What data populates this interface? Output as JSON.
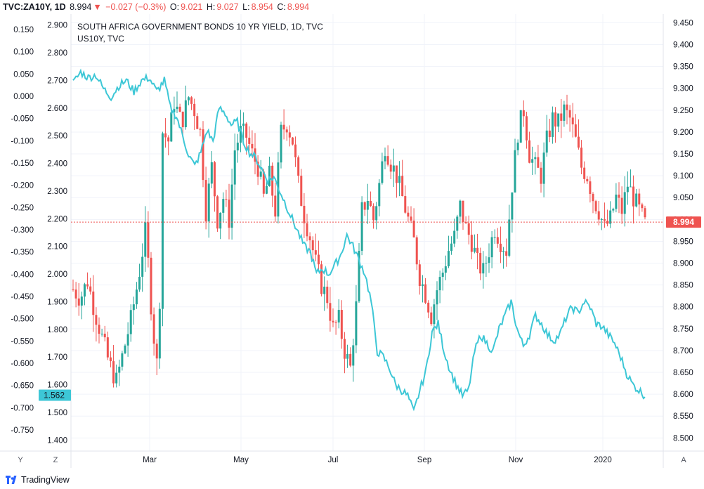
{
  "header": {
    "symbol": "TVC:ZA10Y, 1D",
    "last": "8.994",
    "change": "−0.027 (−0.3%)",
    "open_label": "O:",
    "open": "9.021",
    "high_label": "H:",
    "high": "9.027",
    "low_label": "L:",
    "low": "8.954",
    "close_label": "C:",
    "close": "8.994"
  },
  "legend": {
    "main": "SOUTH AFRICA GOVERNMENT BONDS 10 YR YIELD, 1D, TVC",
    "overlay": "US10Y, TVC"
  },
  "controls": {
    "y_button": "Y",
    "z_button": "Z",
    "a_button": "A"
  },
  "brand": "TradingView",
  "colors": {
    "up": "#26a69a",
    "down": "#ef5350",
    "overlay": "#3dc7d6",
    "grid": "#f0f3fa",
    "price_line": "#ef5350"
  },
  "chart_data": {
    "type": "candlestick-with-overlay",
    "x_tick_labels": [
      "Mar",
      "May",
      "Jul",
      "Sep",
      "Nov",
      "2020"
    ],
    "right_axis": {
      "ticks": [
        "9.450",
        "9.400",
        "9.350",
        "9.300",
        "9.250",
        "9.200",
        "9.150",
        "9.100",
        "9.050",
        "9.000",
        "8.950",
        "8.900",
        "8.850",
        "8.800",
        "8.750",
        "8.700",
        "8.650",
        "8.600",
        "8.550",
        "8.500"
      ],
      "ylim": [
        8.47,
        9.47
      ]
    },
    "left_axis_1": {
      "ticks": [
        "2.900",
        "2.800",
        "2.700",
        "2.600",
        "2.500",
        "2.400",
        "2.300",
        "2.200",
        "2.100",
        "2.000",
        "1.900",
        "1.800",
        "1.700",
        "1.600",
        "1.500",
        "1.400"
      ],
      "ylim": [
        1.36,
        2.94
      ]
    },
    "left_axis_2": {
      "ticks": [
        "0.150",
        "0.100",
        "0.050",
        "0.000",
        "-0.050",
        "-0.100",
        "-0.150",
        "-0.200",
        "-0.250",
        "-0.300",
        "-0.350",
        "-0.400",
        "-0.450",
        "-0.500",
        "-0.550",
        "-0.600",
        "-0.650",
        "-0.700",
        "-0.750"
      ]
    },
    "last_price_label": "8.994",
    "overlay_last_label": "1.562",
    "za10y_close_path": [
      [
        0,
        8.84
      ],
      [
        5,
        8.82
      ],
      [
        10,
        8.86
      ],
      [
        15,
        8.79
      ],
      [
        20,
        8.73
      ],
      [
        25,
        8.67
      ],
      [
        30,
        8.63
      ],
      [
        35,
        8.7
      ],
      [
        40,
        8.77
      ],
      [
        45,
        8.86
      ],
      [
        50,
        8.97
      ],
      [
        52,
        8.9
      ],
      [
        55,
        8.76
      ],
      [
        58,
        8.67
      ],
      [
        60,
        8.82
      ],
      [
        62,
        9.2
      ],
      [
        66,
        9.18
      ],
      [
        70,
        9.27
      ],
      [
        75,
        9.22
      ],
      [
        80,
        9.28
      ],
      [
        84,
        9.25
      ],
      [
        88,
        9.2
      ],
      [
        92,
        9.02
      ],
      [
        96,
        9.12
      ],
      [
        100,
        9.0
      ],
      [
        104,
        9.05
      ],
      [
        108,
        9.0
      ],
      [
        112,
        9.16
      ],
      [
        116,
        9.2
      ],
      [
        120,
        9.19
      ],
      [
        124,
        9.15
      ],
      [
        128,
        9.12
      ],
      [
        132,
        9.05
      ],
      [
        136,
        9.1
      ],
      [
        140,
        9.02
      ],
      [
        144,
        9.2
      ],
      [
        148,
        9.22
      ],
      [
        152,
        9.18
      ],
      [
        156,
        9.08
      ],
      [
        160,
        9.01
      ],
      [
        164,
        8.96
      ],
      [
        168,
        8.9
      ],
      [
        172,
        8.85
      ],
      [
        176,
        8.82
      ],
      [
        180,
        8.75
      ],
      [
        184,
        8.77
      ],
      [
        188,
        8.7
      ],
      [
        192,
        8.66
      ],
      [
        196,
        8.8
      ],
      [
        200,
        9.02
      ],
      [
        204,
        9.05
      ],
      [
        208,
        9.0
      ],
      [
        212,
        9.08
      ],
      [
        216,
        9.17
      ],
      [
        220,
        9.13
      ],
      [
        224,
        9.1
      ],
      [
        228,
        9.05
      ],
      [
        232,
        9.0
      ],
      [
        236,
        8.95
      ],
      [
        240,
        8.87
      ],
      [
        244,
        8.83
      ],
      [
        248,
        8.78
      ],
      [
        252,
        8.84
      ],
      [
        256,
        8.88
      ],
      [
        260,
        8.93
      ],
      [
        264,
        8.96
      ],
      [
        268,
        9.03
      ],
      [
        272,
        8.98
      ],
      [
        276,
        8.95
      ],
      [
        280,
        8.9
      ],
      [
        284,
        8.88
      ],
      [
        288,
        8.93
      ],
      [
        292,
        8.98
      ],
      [
        296,
        8.95
      ],
      [
        300,
        8.93
      ],
      [
        304,
        9.08
      ],
      [
        308,
        9.2
      ],
      [
        312,
        9.25
      ],
      [
        316,
        9.15
      ],
      [
        320,
        9.12
      ],
      [
        324,
        9.1
      ],
      [
        328,
        9.18
      ],
      [
        332,
        9.23
      ],
      [
        336,
        9.22
      ],
      [
        340,
        9.25
      ],
      [
        344,
        9.23
      ],
      [
        348,
        9.18
      ],
      [
        352,
        9.12
      ],
      [
        356,
        9.1
      ],
      [
        360,
        9.05
      ],
      [
        364,
        9.02
      ],
      [
        368,
        8.98
      ],
      [
        372,
        9.0
      ],
      [
        376,
        9.05
      ],
      [
        380,
        9.02
      ],
      [
        384,
        9.08
      ],
      [
        388,
        9.05
      ],
      [
        392,
        9.02
      ],
      [
        396,
        8.99
      ]
    ],
    "us10y_path": [
      [
        0,
        2.69
      ],
      [
        5,
        2.73
      ],
      [
        10,
        2.71
      ],
      [
        15,
        2.72
      ],
      [
        20,
        2.67
      ],
      [
        25,
        2.64
      ],
      [
        30,
        2.68
      ],
      [
        35,
        2.7
      ],
      [
        40,
        2.66
      ],
      [
        45,
        2.7
      ],
      [
        50,
        2.71
      ],
      [
        55,
        2.66
      ],
      [
        60,
        2.7
      ],
      [
        64,
        2.6
      ],
      [
        68,
        2.57
      ],
      [
        72,
        2.5
      ],
      [
        76,
        2.43
      ],
      [
        80,
        2.39
      ],
      [
        84,
        2.44
      ],
      [
        88,
        2.52
      ],
      [
        92,
        2.48
      ],
      [
        96,
        2.6
      ],
      [
        100,
        2.58
      ],
      [
        104,
        2.54
      ],
      [
        108,
        2.55
      ],
      [
        112,
        2.48
      ],
      [
        116,
        2.44
      ],
      [
        120,
        2.42
      ],
      [
        124,
        2.38
      ],
      [
        128,
        2.34
      ],
      [
        132,
        2.35
      ],
      [
        136,
        2.3
      ],
      [
        140,
        2.25
      ],
      [
        144,
        2.2
      ],
      [
        148,
        2.15
      ],
      [
        152,
        2.1
      ],
      [
        156,
        2.08
      ],
      [
        160,
        2.0
      ],
      [
        164,
        2.02
      ],
      [
        168,
        2.0
      ],
      [
        172,
        2.03
      ],
      [
        176,
        2.07
      ],
      [
        180,
        2.14
      ],
      [
        184,
        2.1
      ],
      [
        188,
        2.05
      ],
      [
        192,
        2.0
      ],
      [
        196,
        1.9
      ],
      [
        200,
        1.72
      ],
      [
        204,
        1.7
      ],
      [
        208,
        1.66
      ],
      [
        212,
        1.6
      ],
      [
        216,
        1.58
      ],
      [
        220,
        1.56
      ],
      [
        224,
        1.5
      ],
      [
        228,
        1.58
      ],
      [
        232,
        1.65
      ],
      [
        236,
        1.79
      ],
      [
        240,
        1.82
      ],
      [
        244,
        1.72
      ],
      [
        248,
        1.65
      ],
      [
        252,
        1.6
      ],
      [
        256,
        1.56
      ],
      [
        260,
        1.58
      ],
      [
        264,
        1.72
      ],
      [
        268,
        1.78
      ],
      [
        272,
        1.75
      ],
      [
        276,
        1.72
      ],
      [
        280,
        1.8
      ],
      [
        284,
        1.85
      ],
      [
        288,
        1.9
      ],
      [
        292,
        1.8
      ],
      [
        296,
        1.74
      ],
      [
        300,
        1.78
      ],
      [
        304,
        1.85
      ],
      [
        308,
        1.82
      ],
      [
        312,
        1.78
      ],
      [
        316,
        1.76
      ],
      [
        320,
        1.78
      ],
      [
        324,
        1.84
      ],
      [
        328,
        1.88
      ],
      [
        332,
        1.86
      ],
      [
        336,
        1.9
      ],
      [
        340,
        1.88
      ],
      [
        344,
        1.82
      ],
      [
        348,
        1.81
      ],
      [
        352,
        1.78
      ],
      [
        356,
        1.75
      ],
      [
        360,
        1.7
      ],
      [
        364,
        1.64
      ],
      [
        368,
        1.6
      ],
      [
        372,
        1.58
      ],
      [
        376,
        1.56
      ]
    ]
  }
}
